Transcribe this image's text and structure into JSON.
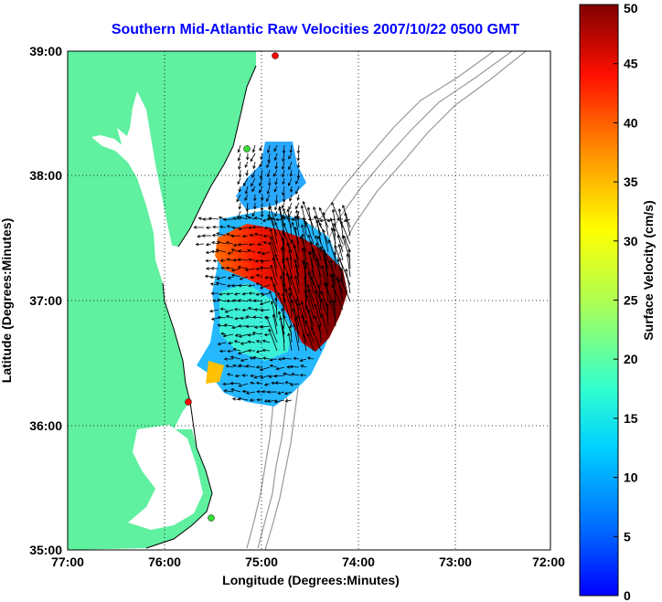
{
  "title": "Southern Mid-Atlantic Raw Velocities 2007/10/22 0500 GMT",
  "axes": {
    "xlabel": "Longitude (Degrees:Minutes)",
    "ylabel": "Latitude (Degrees:Minutes)",
    "xticks": [
      "77:00",
      "76:00",
      "75:00",
      "74:00",
      "73:00",
      "72:00"
    ],
    "yticks": [
      "39:00",
      "38:00",
      "37:00",
      "36:00",
      "35:00"
    ],
    "grid": "dotted"
  },
  "colorbar": {
    "label": "Surface Velocity (cm/s)",
    "min": 0,
    "max": 50,
    "ticks": [
      "0",
      "5",
      "10",
      "15",
      "20",
      "25",
      "30",
      "35",
      "40",
      "45",
      "50"
    ],
    "colormap": "jet"
  },
  "colors": {
    "land": "#5ff0a0",
    "title": "#0000ff",
    "station_active": "#ff0000",
    "station_inactive": "#33dd33"
  },
  "stations": [
    {
      "icon": "station-marker",
      "status": "active",
      "color": "#ff0000"
    },
    {
      "icon": "station-marker",
      "status": "inactive",
      "color": "#33dd33"
    },
    {
      "icon": "station-marker",
      "status": "active",
      "color": "#ff0000"
    },
    {
      "icon": "station-marker",
      "status": "inactive",
      "color": "#33dd33"
    }
  ]
}
